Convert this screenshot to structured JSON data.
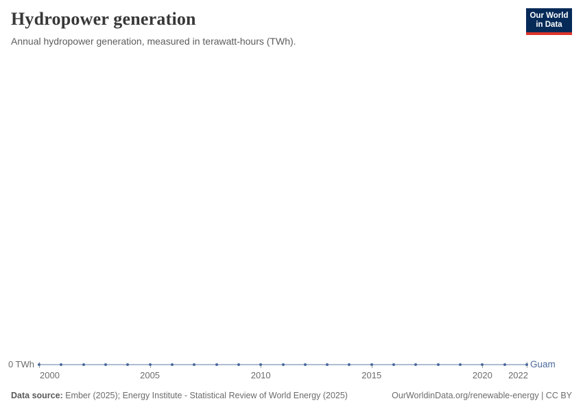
{
  "chart_data": {
    "type": "line",
    "title": "Hydropower generation",
    "subtitle": "Annual hydropower generation, measured in terawatt-hours (TWh).",
    "unit": "TWh",
    "x": [
      2000,
      2001,
      2002,
      2003,
      2004,
      2005,
      2006,
      2007,
      2008,
      2009,
      2010,
      2011,
      2012,
      2013,
      2014,
      2015,
      2016,
      2017,
      2018,
      2019,
      2020,
      2021,
      2022
    ],
    "series": [
      {
        "name": "Guam",
        "color": "#4c6a9c",
        "values": [
          0,
          0,
          0,
          0,
          0,
          0,
          0,
          0,
          0,
          0,
          0,
          0,
          0,
          0,
          0,
          0,
          0,
          0,
          0,
          0,
          0,
          0,
          0
        ]
      }
    ],
    "x_ticks": [
      2000,
      2005,
      2010,
      2015,
      2020,
      2022
    ],
    "y_tick_labels": [
      "0 TWh"
    ],
    "xlim": [
      2000,
      2022
    ],
    "ylim": [
      0,
      0
    ],
    "grid": false,
    "legend_position": "end-of-line-label"
  },
  "logo": {
    "line1": "Our World",
    "line2": "in Data",
    "bg_color": "#062a58",
    "accent_color": "#dd352c"
  },
  "footer": {
    "source_label": "Data source:",
    "source_text": "Ember (2025); Energy Institute - Statistical Review of World Energy (2025)",
    "link_text": "OurWorldinData.org/renewable-energy | CC BY"
  }
}
